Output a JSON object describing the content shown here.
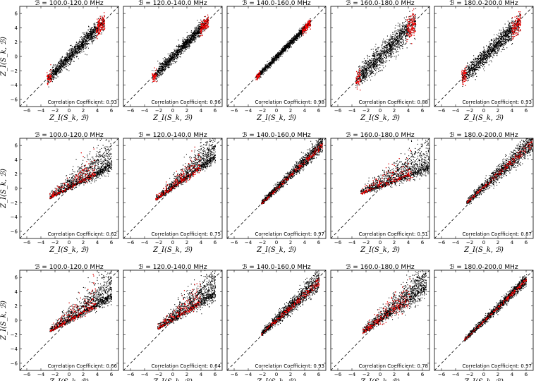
{
  "chart_data": {
    "type": "scatter",
    "grid": false,
    "panel_title_prefix": "ℬ =",
    "correlation_label": "Correlation Coefficient:",
    "xlabel": "Z_I(S_k, ℬ)",
    "ylabel": "Z_I(S_k, ℬ)",
    "xlim": [
      -7,
      7
    ],
    "ylim": [
      -7,
      7
    ],
    "xticks": [
      -6,
      -4,
      -2,
      0,
      2,
      4,
      6
    ],
    "yticks": [
      -6,
      -4,
      -2,
      0,
      2,
      4,
      6
    ],
    "reference_line": "y = x (dashed)",
    "series_colors": {
      "bulk": "#000000",
      "highlight": "#ff0000"
    },
    "bands": [
      "100.0-120.0 MHz",
      "120.0-140.0 MHz",
      "140.0-160.0 MHz",
      "160.0-180.0 MHz",
      "180.0-200.0 MHz"
    ],
    "rows": [
      {
        "correlations": [
          "0.93",
          "0.96",
          "0.98",
          "0.88",
          "0.93"
        ]
      },
      {
        "correlations": [
          "0.62",
          "0.75",
          "0.97",
          "0.51",
          "0.87"
        ]
      },
      {
        "correlations": [
          "0.66",
          "0.64",
          "0.93",
          "0.78",
          "0.97"
        ]
      }
    ]
  }
}
